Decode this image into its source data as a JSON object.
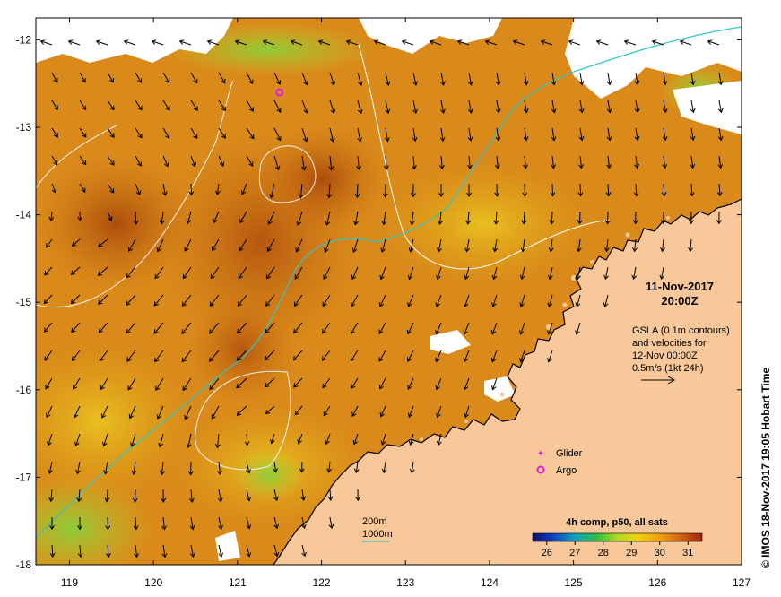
{
  "map": {
    "x_ticks": [
      "119",
      "120",
      "121",
      "122",
      "123",
      "124",
      "125",
      "126",
      "127"
    ],
    "y_ticks": [
      "-12",
      "-13",
      "-14",
      "-15",
      "-16",
      "-17",
      "-18"
    ],
    "lon_range": [
      118.6,
      127
    ],
    "lat_range": [
      -18,
      -11.75
    ]
  },
  "annotation": {
    "date": "11-Nov-2017",
    "time": "20:00Z",
    "gsla_line1": "GSLA (0.1m contours)",
    "gsla_line2": "and velocities for",
    "gsla_line3": "12-Nov 00:00Z",
    "scale_label": "0.5m/s (1kt 24h)"
  },
  "legend": {
    "glider_label": "Glider",
    "argo_label": "Argo",
    "glider_color": "#e020e0",
    "argo_color": "#e020e0"
  },
  "depth_legend": {
    "line1": "200m",
    "line2": "1000m",
    "color_200m": "#ffffff",
    "color_1000m": "#30c8c8"
  },
  "colorbar": {
    "title": "4h comp, p50, all sats",
    "ticks": [
      "26",
      "27",
      "28",
      "29",
      "30",
      "31"
    ],
    "range": [
      25.5,
      31.5
    ]
  },
  "credit": "© IMOS 18-Nov-2017 19:05 Hobart Time",
  "colors": {
    "land": "#f9c89a",
    "ocean_main": "#d98a1a",
    "ocean_warm": "#b85a10",
    "ocean_cool": "#e6b020",
    "ocean_green": "#9cd040",
    "no_data": "#ffffff"
  },
  "markers": {
    "glider": {
      "lon": 124.5,
      "lat": -16.72
    },
    "argo_legend": {
      "lon": 124.5,
      "lat": -16.92
    },
    "argo_field": {
      "lon": 121.5,
      "lat": -12.6
    }
  }
}
